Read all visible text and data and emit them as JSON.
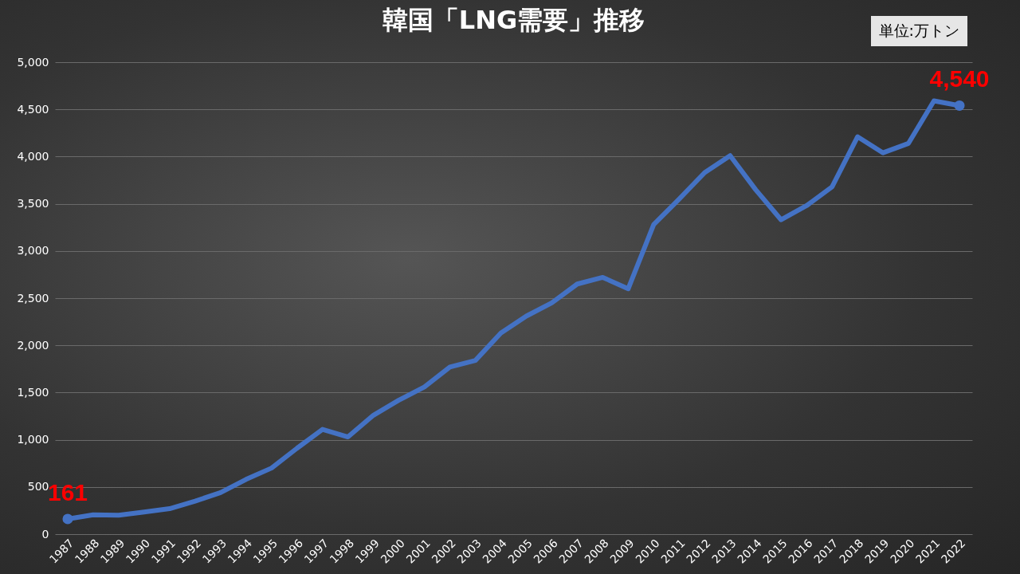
{
  "chart_data": {
    "type": "line",
    "title": "韓国「LNG需要」推移",
    "annotations": [
      "単位:万トン"
    ],
    "categories": [
      "1987",
      "1988",
      "1989",
      "1990",
      "1991",
      "1992",
      "1993",
      "1994",
      "1995",
      "1996",
      "1997",
      "1998",
      "1999",
      "2000",
      "2001",
      "2002",
      "2003",
      "2004",
      "2005",
      "2006",
      "2007",
      "2008",
      "2009",
      "2010",
      "2011",
      "2012",
      "2013",
      "2014",
      "2015",
      "2016",
      "2017",
      "2018",
      "2019",
      "2020",
      "2021",
      "2022"
    ],
    "series": [
      {
        "color": "#4472c4",
        "values": [
          161,
          205,
          200,
          235,
          270,
          350,
          440,
          580,
          700,
          910,
          1110,
          1030,
          1260,
          1420,
          1560,
          1770,
          1840,
          2130,
          2310,
          2450,
          2650,
          2720,
          2600,
          3280,
          3550,
          3830,
          4010,
          3650,
          3330,
          3480,
          3680,
          4210,
          4040,
          4140,
          4590,
          4540
        ],
        "value_labels": [
          "161",
          null,
          null,
          null,
          null,
          null,
          null,
          null,
          null,
          null,
          null,
          null,
          null,
          null,
          null,
          null,
          null,
          null,
          null,
          null,
          null,
          null,
          null,
          null,
          null,
          null,
          null,
          null,
          null,
          null,
          null,
          null,
          null,
          null,
          null,
          "4,540"
        ]
      }
    ],
    "ylim": [
      0,
      5000
    ],
    "yticks": [
      {
        "value": 0,
        "label": "0"
      },
      {
        "value": 500,
        "label": "500"
      },
      {
        "value": 1000,
        "label": "1,000"
      },
      {
        "value": 1500,
        "label": "1,500"
      },
      {
        "value": 2000,
        "label": "2,000"
      },
      {
        "value": 2500,
        "label": "2,500"
      },
      {
        "value": 3000,
        "label": "3,000"
      },
      {
        "value": 3500,
        "label": "3,500"
      },
      {
        "value": 4000,
        "label": "4,000"
      },
      {
        "value": 4500,
        "label": "4,500"
      },
      {
        "value": 5000,
        "label": "5,000"
      }
    ],
    "grid": "y",
    "legend": false
  }
}
